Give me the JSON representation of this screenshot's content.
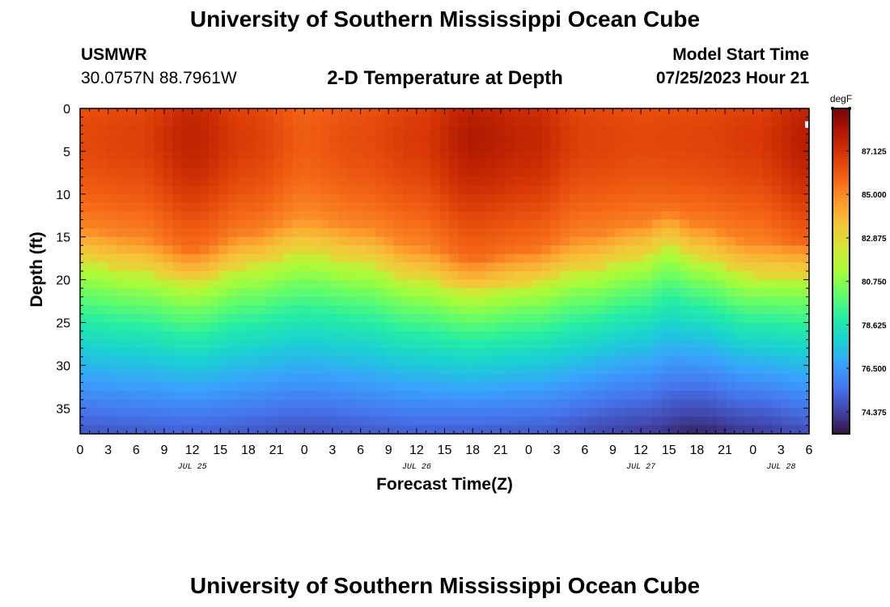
{
  "header": {
    "title": "University of Southern Mississippi Ocean Cube",
    "station": "USMWR",
    "coordinates": "30.0757N  88.7961W",
    "subtitle": "2-D Temperature at Depth",
    "model_label": "Model Start Time",
    "model_value": "07/25/2023 Hour 21"
  },
  "footer": {
    "title": "University of Southern Mississippi Ocean Cube"
  },
  "chart_data": {
    "type": "heatmap",
    "title": "2-D Temperature at Depth",
    "xlabel": "Forecast Time(Z)",
    "ylabel": "Depth (ft)",
    "x_unit": "hours since 2023-07-25 00Z",
    "x_range": [
      0,
      78
    ],
    "x_ticks": [
      0,
      3,
      6,
      9,
      12,
      15,
      18,
      21,
      24,
      27,
      30,
      33,
      36,
      39,
      42,
      45,
      48,
      51,
      54,
      57,
      60,
      63,
      66,
      69,
      72,
      75,
      78
    ],
    "x_tick_labels": [
      "0",
      "3",
      "6",
      "9",
      "12",
      "15",
      "18",
      "21",
      "0",
      "3",
      "6",
      "9",
      "12",
      "15",
      "18",
      "21",
      "0",
      "3",
      "6",
      "9",
      "12",
      "15",
      "18",
      "21",
      "0",
      "3",
      "6"
    ],
    "date_labels": [
      {
        "hour": 12,
        "label": "JUL 25"
      },
      {
        "hour": 36,
        "label": "JUL 26"
      },
      {
        "hour": 60,
        "label": "JUL 27"
      },
      {
        "hour": 75,
        "label": "JUL 28"
      }
    ],
    "y_range": [
      0,
      38
    ],
    "y_ticks": [
      0,
      5,
      10,
      15,
      20,
      25,
      30,
      35
    ],
    "y_tick_labels": [
      "0",
      "5",
      "10",
      "15",
      "20",
      "25",
      "30",
      "35"
    ],
    "colorbar": {
      "unit": "degF",
      "range": [
        73.3,
        89.2
      ],
      "ticks": [
        74.375,
        76.5,
        78.625,
        80.75,
        82.875,
        85.0,
        87.125
      ],
      "tick_labels": [
        "74.375",
        "76.500",
        "78.625",
        "80.750",
        "82.875",
        "85.000",
        "87.125"
      ],
      "colors": [
        "#30123b",
        "#4145ab",
        "#4675ed",
        "#39a2fc",
        "#1bcfd4",
        "#24eca6",
        "#61fc6c",
        "#a4fc3b",
        "#d1e834",
        "#f3c63a",
        "#fe9b2d",
        "#f36315",
        "#d93806",
        "#b11901",
        "#7a0402"
      ]
    },
    "thermocline_depth_ft": [
      {
        "hour": 0,
        "depth": 18.0
      },
      {
        "hour": 6,
        "depth": 19.0
      },
      {
        "hour": 12,
        "depth": 20.5
      },
      {
        "hour": 18,
        "depth": 18.5
      },
      {
        "hour": 24,
        "depth": 17.0
      },
      {
        "hour": 30,
        "depth": 18.0
      },
      {
        "hour": 36,
        "depth": 20.0
      },
      {
        "hour": 42,
        "depth": 21.5
      },
      {
        "hour": 48,
        "depth": 20.5
      },
      {
        "hour": 54,
        "depth": 19.0
      },
      {
        "hour": 60,
        "depth": 17.5
      },
      {
        "hour": 63,
        "depth": 16.0
      },
      {
        "hour": 66,
        "depth": 17.5
      },
      {
        "hour": 72,
        "depth": 19.5
      },
      {
        "hour": 78,
        "depth": 19.5
      }
    ],
    "surface_peak_degF": [
      {
        "hour": 0,
        "temp": 87.4
      },
      {
        "hour": 6,
        "temp": 87.6
      },
      {
        "hour": 12,
        "temp": 88.6
      },
      {
        "hour": 18,
        "temp": 87.7
      },
      {
        "hour": 24,
        "temp": 86.9
      },
      {
        "hour": 30,
        "temp": 87.3
      },
      {
        "hour": 36,
        "temp": 87.8
      },
      {
        "hour": 42,
        "temp": 88.9
      },
      {
        "hour": 48,
        "temp": 88.5
      },
      {
        "hour": 54,
        "temp": 87.6
      },
      {
        "hour": 60,
        "temp": 87.4
      },
      {
        "hour": 66,
        "temp": 87.5
      },
      {
        "hour": 72,
        "temp": 87.8
      },
      {
        "hour": 78,
        "temp": 88.8
      }
    ],
    "bottom_degF": [
      {
        "hour": 0,
        "temp": 74.8
      },
      {
        "hour": 12,
        "temp": 75.0
      },
      {
        "hour": 24,
        "temp": 74.7
      },
      {
        "hour": 36,
        "temp": 75.0
      },
      {
        "hour": 48,
        "temp": 74.9
      },
      {
        "hour": 60,
        "temp": 74.2
      },
      {
        "hour": 66,
        "temp": 73.7
      },
      {
        "hour": 72,
        "temp": 74.1
      },
      {
        "hour": 78,
        "temp": 74.6
      }
    ]
  }
}
